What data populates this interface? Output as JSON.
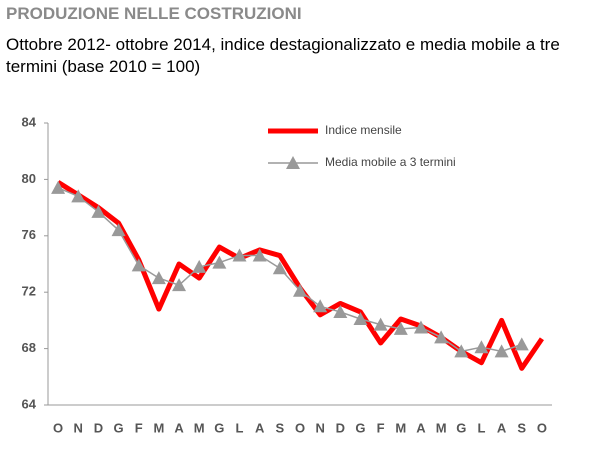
{
  "chart_data": {
    "type": "line",
    "title": "PRODUZIONE NELLE COSTRUZIONI",
    "subtitle": "Ottobre 2012- ottobre 2014, indice destagionalizzato e media mobile a tre termini (base 2010 = 100)",
    "categories": [
      "O",
      "N",
      "D",
      "G",
      "F",
      "M",
      "A",
      "M",
      "G",
      "L",
      "A",
      "S",
      "O",
      "N",
      "D",
      "G",
      "F",
      "M",
      "A",
      "M",
      "G",
      "L",
      "A",
      "S",
      "O"
    ],
    "series": [
      {
        "name": "Indice mensile",
        "color": "#ff0000",
        "values": [
          79.8,
          78.9,
          78.0,
          76.9,
          74.3,
          70.8,
          74.0,
          73.0,
          75.2,
          74.4,
          75.0,
          74.6,
          72.3,
          70.4,
          71.2,
          70.6,
          68.4,
          70.1,
          69.6,
          68.8,
          67.8,
          67.0,
          70.0,
          66.6,
          68.7
        ]
      },
      {
        "name": "Media mobile a 3 termini",
        "color": "#999999",
        "values": [
          79.4,
          78.8,
          77.7,
          76.4,
          73.9,
          73.0,
          72.5,
          73.8,
          74.1,
          74.6,
          74.6,
          73.7,
          72.1,
          71.0,
          70.6,
          70.1,
          69.7,
          69.4,
          69.5,
          68.8,
          67.8,
          68.1,
          67.8,
          68.3,
          null
        ]
      }
    ],
    "ylim": [
      64,
      84
    ],
    "yticks": [
      64,
      68,
      72,
      76,
      80,
      84
    ],
    "grid": false
  }
}
